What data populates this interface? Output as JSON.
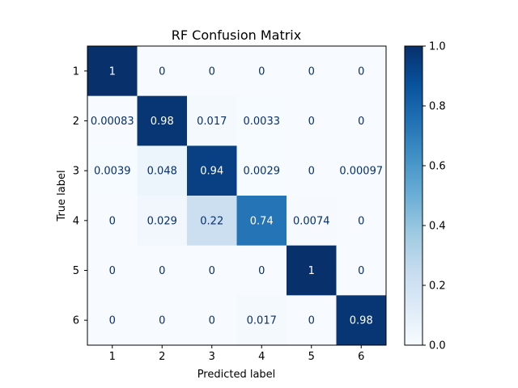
{
  "chart_data": {
    "type": "heatmap",
    "title": "RF Confusion Matrix",
    "xlabel": "Predicted label",
    "ylabel": "True label",
    "x_categories": [
      "1",
      "2",
      "3",
      "4",
      "5",
      "6"
    ],
    "y_categories": [
      "1",
      "2",
      "3",
      "4",
      "5",
      "6"
    ],
    "values": [
      [
        1,
        0,
        0,
        0,
        0,
        0
      ],
      [
        0.00083,
        0.98,
        0.017,
        0.0033,
        0,
        0
      ],
      [
        0.0039,
        0.048,
        0.94,
        0.0029,
        0,
        0.00097
      ],
      [
        0,
        0.029,
        0.22,
        0.74,
        0.0074,
        0
      ],
      [
        0,
        0,
        0,
        0,
        1,
        0
      ],
      [
        0,
        0,
        0,
        0.017,
        0,
        0.98
      ]
    ],
    "value_labels": [
      [
        "1",
        "0",
        "0",
        "0",
        "0",
        "0"
      ],
      [
        "0.00083",
        "0.98",
        "0.017",
        "0.0033",
        "0",
        "0"
      ],
      [
        "0.0039",
        "0.048",
        "0.94",
        "0.0029",
        "0",
        "0.00097"
      ],
      [
        "0",
        "0.029",
        "0.22",
        "0.74",
        "0.0074",
        "0"
      ],
      [
        "0",
        "0",
        "0",
        "0",
        "1",
        "0"
      ],
      [
        "0",
        "0",
        "0",
        "0.017",
        "0",
        "0.98"
      ]
    ],
    "colormap": "Blues",
    "colorbar": {
      "range": [
        0.0,
        1.0
      ],
      "ticks": [
        0.0,
        0.2,
        0.4,
        0.6,
        0.8,
        1.0
      ],
      "tick_labels": [
        "0.0",
        "0.2",
        "0.4",
        "0.6",
        "0.8",
        "1.0"
      ]
    },
    "grid": false
  }
}
